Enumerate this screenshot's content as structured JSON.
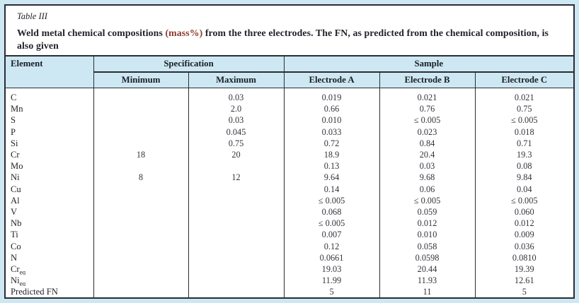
{
  "page": {
    "background_color": "#cde8f3",
    "panel_border_color": "#2b2c33",
    "header_band_color": "#cde8f3",
    "title_highlight_color": "#8d3a30"
  },
  "figure": {
    "caption_label": "Table III",
    "title_prefix": "Weld metal chemical compositions ",
    "title_highlight": "(mass%)",
    "title_suffix": " from the three electrodes. The FN, as predicted from the chemical composition, is also given"
  },
  "table": {
    "header": {
      "element": "Element",
      "specification": "Specification",
      "sample": "Sample",
      "minimum": "Minimum",
      "maximum": "Maximum",
      "electrode_a": "Electrode A",
      "electrode_b": "Electrode B",
      "electrode_c": "Electrode C"
    },
    "rows": [
      {
        "element": "C",
        "sub": "",
        "min": "",
        "max": "0.03",
        "a": "0.019",
        "b": "0.021",
        "c": "0.021"
      },
      {
        "element": "Mn",
        "sub": "",
        "min": "",
        "max": "2.0",
        "a": "0.66",
        "b": "0.76",
        "c": "0.75"
      },
      {
        "element": "S",
        "sub": "",
        "min": "",
        "max": "0.03",
        "a": "0.010",
        "b": "≤ 0.005",
        "c": "≤ 0.005"
      },
      {
        "element": "P",
        "sub": "",
        "min": "",
        "max": "0.045",
        "a": "0.033",
        "b": "0.023",
        "c": "0.018"
      },
      {
        "element": "Si",
        "sub": "",
        "min": "",
        "max": "0.75",
        "a": "0.72",
        "b": "0.84",
        "c": "0.71"
      },
      {
        "element": "Cr",
        "sub": "",
        "min": "18",
        "max": "20",
        "a": "18.9",
        "b": "20.4",
        "c": "19.3"
      },
      {
        "element": "Mo",
        "sub": "",
        "min": "",
        "max": "",
        "a": "0.13",
        "b": "0.03",
        "c": "0.08"
      },
      {
        "element": "Ni",
        "sub": "",
        "min": "8",
        "max": "12",
        "a": "9.64",
        "b": "9.68",
        "c": "9.84"
      },
      {
        "element": "Cu",
        "sub": "",
        "min": "",
        "max": "",
        "a": "0.14",
        "b": "0.06",
        "c": "0.04"
      },
      {
        "element": "Al",
        "sub": "",
        "min": "",
        "max": "",
        "a": "≤ 0.005",
        "b": "≤ 0.005",
        "c": "≤ 0.005"
      },
      {
        "element": "V",
        "sub": "",
        "min": "",
        "max": "",
        "a": "0.068",
        "b": "0.059",
        "c": "0.060"
      },
      {
        "element": "Nb",
        "sub": "",
        "min": "",
        "max": "",
        "a": "≤ 0.005",
        "b": "0.012",
        "c": "0.012"
      },
      {
        "element": "Ti",
        "sub": "",
        "min": "",
        "max": "",
        "a": "0.007",
        "b": "0.010",
        "c": "0.009"
      },
      {
        "element": "Co",
        "sub": "",
        "min": "",
        "max": "",
        "a": "0.12",
        "b": "0.058",
        "c": "0.036"
      },
      {
        "element": "N",
        "sub": "",
        "min": "",
        "max": "",
        "a": "0.0661",
        "b": "0.0598",
        "c": "0.0810"
      },
      {
        "element": "Cr",
        "sub": "eq",
        "min": "",
        "max": "",
        "a": "19.03",
        "b": "20.44",
        "c": "19.39"
      },
      {
        "element": "Ni",
        "sub": "eq",
        "min": "",
        "max": "",
        "a": "11.99",
        "b": "11.93",
        "c": "12.61"
      },
      {
        "element": "Predicted FN",
        "sub": "",
        "min": "",
        "max": "",
        "a": "5",
        "b": "11",
        "c": "5"
      }
    ]
  }
}
